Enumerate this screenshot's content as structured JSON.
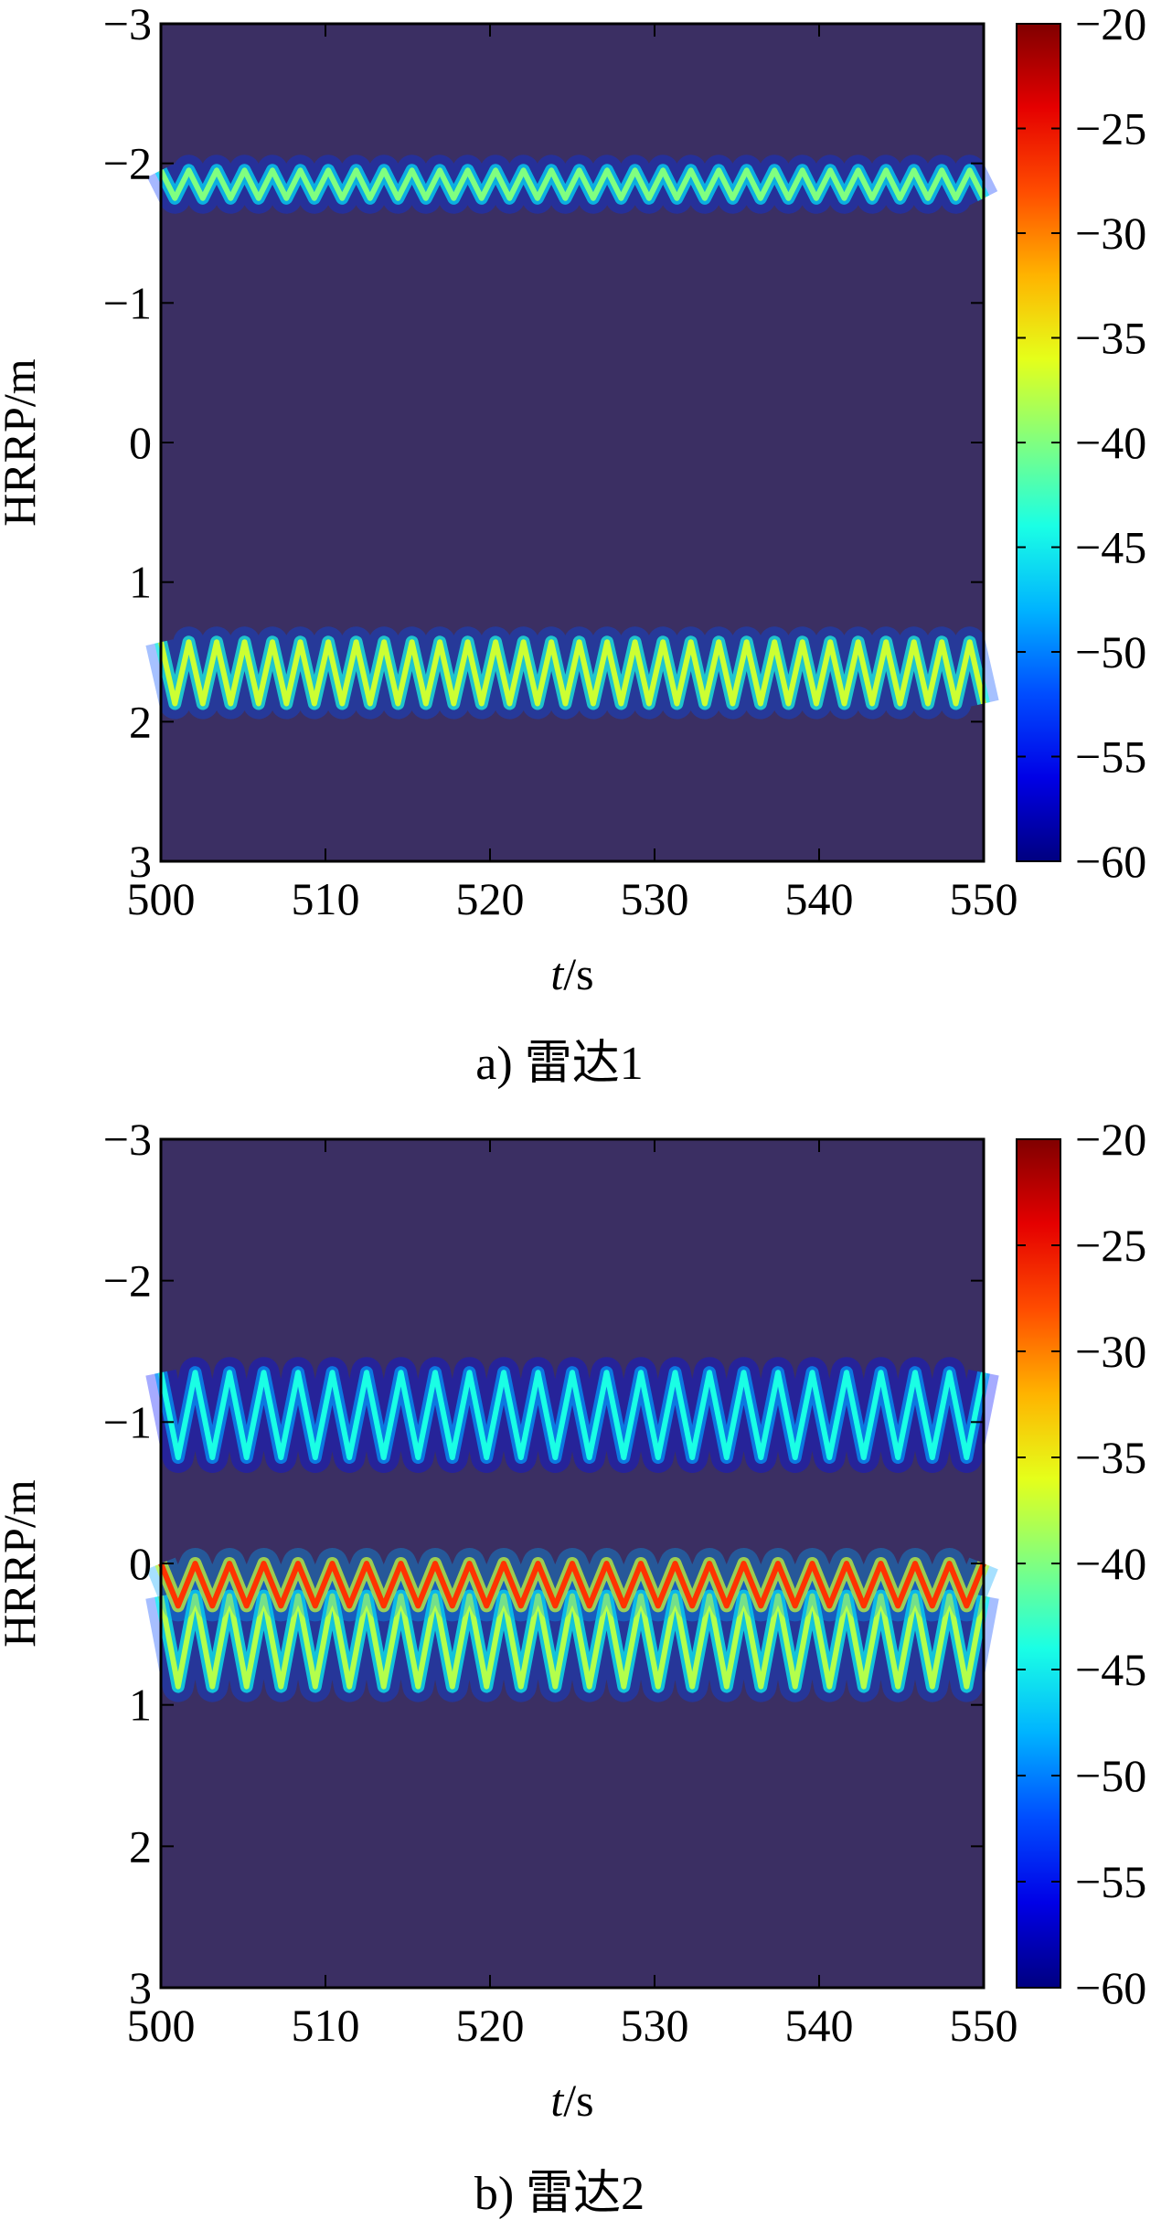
{
  "chart_data": [
    {
      "type": "heatmap",
      "caption": "a) 雷达1",
      "xlabel_italic": "t",
      "xlabel_rest": "/s",
      "ylabel": "HRRP/m",
      "xlim": [
        500,
        550
      ],
      "ylim": [
        -3,
        3
      ],
      "y_reversed": true,
      "xticks": [
        "500",
        "510",
        "520",
        "530",
        "540",
        "550"
      ],
      "yticks": [
        "−3",
        "−2",
        "−1",
        "0",
        "1",
        "2",
        "3"
      ],
      "colorbar": {
        "range": [
          -60,
          -20
        ],
        "ticks": [
          "−20",
          "−25",
          "−30",
          "−35",
          "−40",
          "−45",
          "−50",
          "−55",
          "−60"
        ],
        "colormap": "jet",
        "background_color": "#3b2f63"
      },
      "bands": [
        {
          "center": -1.85,
          "amplitude": 0.1,
          "period_s": 1.7,
          "peak_db": -40
        },
        {
          "center": 1.65,
          "amplitude": 0.22,
          "period_s": 1.7,
          "peak_db": -37
        }
      ]
    },
    {
      "type": "heatmap",
      "caption": "b) 雷达2",
      "xlabel_italic": "t",
      "xlabel_rest": "/s",
      "ylabel": "HRRP/m",
      "xlim": [
        500,
        550
      ],
      "ylim": [
        -3,
        3
      ],
      "y_reversed": true,
      "xticks": [
        "500",
        "510",
        "520",
        "530",
        "540",
        "550"
      ],
      "yticks": [
        "−3",
        "−2",
        "−1",
        "0",
        "1",
        "2",
        "3"
      ],
      "colorbar": {
        "range": [
          -60,
          -20
        ],
        "ticks": [
          "−20",
          "−25",
          "−30",
          "−35",
          "−40",
          "−45",
          "−50",
          "−55",
          "−60"
        ],
        "colormap": "jet",
        "background_color": "#3b2f63"
      },
      "bands": [
        {
          "center": -1.05,
          "amplitude": 0.3,
          "period_s": 2.1,
          "peak_db": -44
        },
        {
          "center": 0.55,
          "amplitude": 0.32,
          "period_s": 2.1,
          "peak_db": -38
        },
        {
          "center": 0.15,
          "amplitude": 0.15,
          "period_s": 2.1,
          "peak_db": -27
        }
      ]
    }
  ]
}
